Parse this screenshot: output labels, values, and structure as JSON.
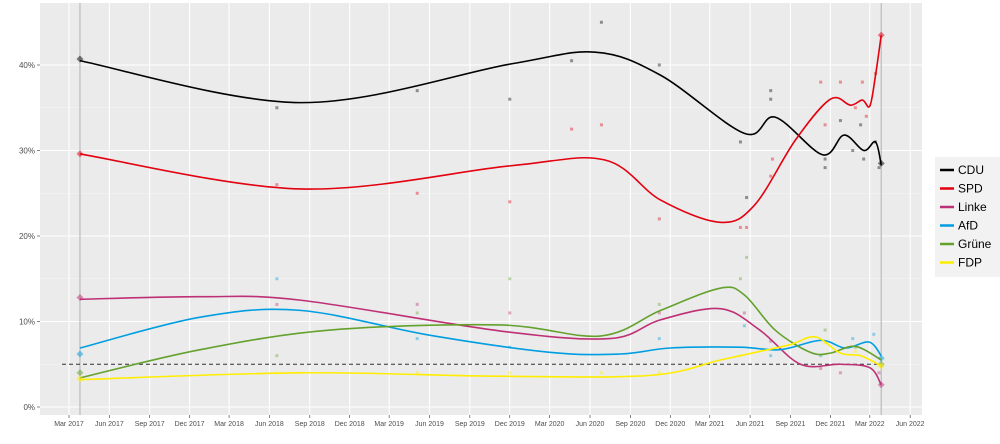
{
  "chart_data": {
    "type": "line",
    "title": "",
    "xlabel": "",
    "ylabel": "",
    "ylim": [
      0,
      45
    ],
    "xlim": [
      "2017-01-15",
      "2022-07-01"
    ],
    "grid": true,
    "legend_placement": "right",
    "y_ticks": [
      {
        "v": 0,
        "label": "0%"
      },
      {
        "v": 10,
        "label": "10%"
      },
      {
        "v": 20,
        "label": "20%"
      },
      {
        "v": 30,
        "label": "30%"
      },
      {
        "v": 40,
        "label": "40%"
      }
    ],
    "x_ticks": [
      {
        "d": "2017-03-01",
        "label": "Mar 2017"
      },
      {
        "d": "2017-06-01",
        "label": "Jun 2017"
      },
      {
        "d": "2017-09-01",
        "label": "Sep 2017"
      },
      {
        "d": "2017-12-01",
        "label": "Dec 2017"
      },
      {
        "d": "2018-03-01",
        "label": "Mar 2018"
      },
      {
        "d": "2018-06-01",
        "label": "Jun 2018"
      },
      {
        "d": "2018-09-01",
        "label": "Sep 2018"
      },
      {
        "d": "2018-12-01",
        "label": "Dec 2018"
      },
      {
        "d": "2019-03-01",
        "label": "Mar 2019"
      },
      {
        "d": "2019-06-01",
        "label": "Jun 2019"
      },
      {
        "d": "2019-09-01",
        "label": "Sep 2019"
      },
      {
        "d": "2019-12-01",
        "label": "Dec 2019"
      },
      {
        "d": "2020-03-01",
        "label": "Mar 2020"
      },
      {
        "d": "2020-06-01",
        "label": "Jun 2020"
      },
      {
        "d": "2020-09-01",
        "label": "Sep 2020"
      },
      {
        "d": "2020-12-01",
        "label": "Dec 2020"
      },
      {
        "d": "2021-03-01",
        "label": "Mar 2021"
      },
      {
        "d": "2021-06-01",
        "label": "Jun 2021"
      },
      {
        "d": "2021-09-01",
        "label": "Sep 2021"
      },
      {
        "d": "2021-12-01",
        "label": "Dec 2021"
      },
      {
        "d": "2022-03-01",
        "label": "Mar 2022"
      },
      {
        "d": "2022-06-01",
        "label": "Jun 2022"
      }
    ],
    "election_dates": [
      "2017-03-26",
      "2022-03-27"
    ],
    "threshold": 5,
    "series": [
      {
        "name": "CDU",
        "color": "#000000",
        "trend": [
          [
            "2017-03-26",
            40.5
          ],
          [
            "2018-08-10",
            35.6
          ],
          [
            "2019-12-01",
            40.1
          ],
          [
            "2020-06-13",
            41.5
          ],
          [
            "2020-11-09",
            38.8
          ],
          [
            "2021-05-19",
            32
          ],
          [
            "2021-07-28",
            33.9
          ],
          [
            "2021-11-13",
            29.5
          ],
          [
            "2022-01-01",
            31.8
          ],
          [
            "2022-02-15",
            30
          ],
          [
            "2022-03-14",
            31
          ],
          [
            "2022-03-27",
            28.3
          ]
        ],
        "polls": [
          [
            "2018-06-18",
            35
          ],
          [
            "2019-05-04",
            37
          ],
          [
            "2019-12-01",
            36
          ],
          [
            "2020-04-20",
            40.5
          ],
          [
            "2020-06-27",
            45
          ],
          [
            "2020-11-06",
            40
          ],
          [
            "2021-05-10",
            31
          ],
          [
            "2021-05-24",
            24.5
          ],
          [
            "2021-07-18",
            37
          ],
          [
            "2021-07-18",
            36
          ],
          [
            "2021-11-19",
            29
          ],
          [
            "2021-11-19",
            28
          ],
          [
            "2021-12-24",
            33.5
          ],
          [
            "2022-01-21",
            30
          ],
          [
            "2022-02-08",
            33
          ],
          [
            "2022-02-15",
            29
          ],
          [
            "2022-03-14",
            31
          ],
          [
            "2022-03-22",
            28
          ]
        ],
        "elections": [
          40.7,
          28.5
        ]
      },
      {
        "name": "SPD",
        "color": "#e3000f",
        "trend": [
          [
            "2017-03-26",
            29.6
          ],
          [
            "2018-08-10",
            25.5
          ],
          [
            "2019-12-01",
            28.2
          ],
          [
            "2020-07-04",
            28.9
          ],
          [
            "2020-11-09",
            24.2
          ],
          [
            "2021-03-25",
            21.6
          ],
          [
            "2021-06-11",
            23.6
          ],
          [
            "2021-09-12",
            31.2
          ],
          [
            "2021-12-01",
            36
          ],
          [
            "2022-01-16",
            35.3
          ],
          [
            "2022-02-12",
            35.9
          ],
          [
            "2022-03-01",
            35.2
          ],
          [
            "2022-03-14",
            38.8
          ],
          [
            "2022-03-27",
            43.5
          ]
        ],
        "polls": [
          [
            "2018-06-18",
            26
          ],
          [
            "2019-05-04",
            25
          ],
          [
            "2019-12-01",
            24
          ],
          [
            "2020-04-20",
            32.5
          ],
          [
            "2020-06-27",
            33
          ],
          [
            "2020-11-06",
            22
          ],
          [
            "2021-05-10",
            21
          ],
          [
            "2021-05-24",
            21
          ],
          [
            "2021-07-18",
            27
          ],
          [
            "2021-07-22",
            29
          ],
          [
            "2021-11-09",
            38
          ],
          [
            "2021-11-19",
            33
          ],
          [
            "2021-12-24",
            38
          ],
          [
            "2022-01-27",
            35
          ],
          [
            "2022-02-12",
            38
          ],
          [
            "2022-02-21",
            34
          ],
          [
            "2022-03-14",
            39
          ]
        ],
        "elections": [
          29.6,
          43.5
        ]
      },
      {
        "name": "Linke",
        "color": "#be3075",
        "trend": [
          [
            "2017-03-26",
            12.6
          ],
          [
            "2017-12-25",
            12.9
          ],
          [
            "2018-08-10",
            12.5
          ],
          [
            "2019-11-08",
            8.9
          ],
          [
            "2020-07-16",
            8
          ],
          [
            "2020-11-09",
            10.2
          ],
          [
            "2021-03-25",
            11.5
          ],
          [
            "2021-06-23",
            9
          ],
          [
            "2021-09-24",
            5
          ],
          [
            "2021-12-24",
            5
          ],
          [
            "2022-03-01",
            4.6
          ],
          [
            "2022-03-27",
            2.6
          ]
        ],
        "polls": [
          [
            "2018-06-18",
            12
          ],
          [
            "2019-05-04",
            12
          ],
          [
            "2019-12-01",
            11
          ],
          [
            "2020-11-06",
            11
          ],
          [
            "2021-05-19",
            11
          ],
          [
            "2021-07-18",
            7.7
          ],
          [
            "2021-11-09",
            4.5
          ],
          [
            "2021-12-24",
            4
          ],
          [
            "2022-03-22",
            4
          ]
        ],
        "elections": [
          12.8,
          2.6
        ]
      },
      {
        "name": "AfD",
        "color": "#009ee0",
        "trend": [
          [
            "2017-03-26",
            6.9
          ],
          [
            "2017-12-25",
            10.5
          ],
          [
            "2018-08-10",
            11.3
          ],
          [
            "2019-06-01",
            8.4
          ],
          [
            "2020-03-01",
            6.4
          ],
          [
            "2020-08-09",
            6.2
          ],
          [
            "2020-12-01",
            6.9
          ],
          [
            "2021-05-09",
            7
          ],
          [
            "2021-08-08",
            6.7
          ],
          [
            "2021-11-09",
            7.8
          ],
          [
            "2022-01-04",
            6.9
          ],
          [
            "2022-02-27",
            7.6
          ],
          [
            "2022-03-27",
            6
          ]
        ],
        "polls": [
          [
            "2018-06-18",
            15
          ],
          [
            "2019-05-04",
            8
          ],
          [
            "2019-12-01",
            7
          ],
          [
            "2020-11-06",
            8
          ],
          [
            "2021-05-19",
            9.5
          ],
          [
            "2021-07-18",
            6
          ],
          [
            "2021-11-09",
            6
          ],
          [
            "2022-01-21",
            8
          ],
          [
            "2022-03-10",
            8.5
          ]
        ],
        "elections": [
          6.2,
          5.7
        ]
      },
      {
        "name": "Grüne",
        "color": "#64a12d",
        "trend": [
          [
            "2017-03-26",
            3.4
          ],
          [
            "2017-12-25",
            6.7
          ],
          [
            "2018-10-17",
            9
          ],
          [
            "2019-11-08",
            9.6
          ],
          [
            "2020-06-24",
            8.3
          ],
          [
            "2020-11-09",
            11.3
          ],
          [
            "2021-03-25",
            13.9
          ],
          [
            "2021-05-19",
            13.1
          ],
          [
            "2021-07-28",
            9
          ],
          [
            "2021-10-16",
            6.4
          ],
          [
            "2021-12-01",
            6.3
          ],
          [
            "2022-01-27",
            7.1
          ],
          [
            "2022-03-27",
            5.5
          ]
        ],
        "polls": [
          [
            "2018-06-18",
            6
          ],
          [
            "2019-05-04",
            11
          ],
          [
            "2019-12-01",
            15
          ],
          [
            "2020-11-06",
            12
          ],
          [
            "2021-05-10",
            15
          ],
          [
            "2021-05-24",
            17.5
          ],
          [
            "2021-11-19",
            9
          ],
          [
            "2022-01-27",
            7
          ]
        ],
        "elections": [
          4.0,
          5.0
        ]
      },
      {
        "name": "FDP",
        "color": "#ffed00",
        "trend": [
          [
            "2017-03-26",
            3.2
          ],
          [
            "2018-08-10",
            4
          ],
          [
            "2019-11-08",
            3.6
          ],
          [
            "2020-10-16",
            3.7
          ],
          [
            "2021-03-25",
            5.5
          ],
          [
            "2021-06-23",
            6.5
          ],
          [
            "2021-09-01",
            7.3
          ],
          [
            "2021-10-28",
            8.2
          ],
          [
            "2021-12-24",
            6.3
          ],
          [
            "2022-02-08",
            6
          ],
          [
            "2022-03-27",
            4.8
          ]
        ],
        "polls": [
          [
            "2018-06-18",
            4
          ],
          [
            "2019-05-04",
            4
          ],
          [
            "2019-12-01",
            4
          ],
          [
            "2020-06-27",
            4
          ],
          [
            "2020-11-06",
            4
          ],
          [
            "2021-05-10",
            6
          ],
          [
            "2021-11-19",
            7.5
          ],
          [
            "2022-01-27",
            6.5
          ]
        ],
        "elections": [
          3.3,
          4.8
        ]
      }
    ]
  }
}
